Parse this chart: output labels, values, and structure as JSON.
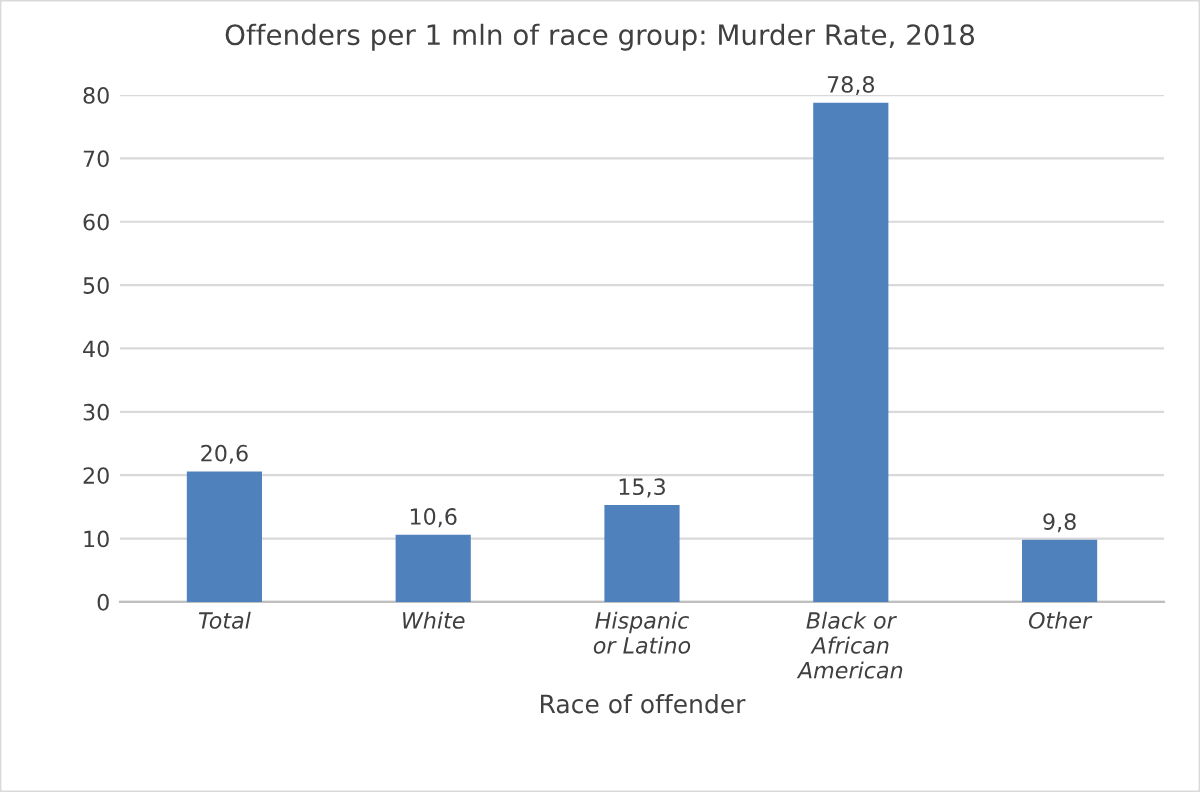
{
  "chart_data": {
    "type": "bar",
    "title": "Offenders per 1 mln of race group: Murder Rate, 2018",
    "xlabel": "Race of offender",
    "categories": [
      "Total",
      "White",
      "Hispanic or Latino",
      "Black or African American",
      "Other"
    ],
    "values": [
      20.6,
      10.6,
      15.3,
      78.8,
      9.8
    ],
    "value_labels": [
      "20,6",
      "10,6",
      "15,3",
      "78,8",
      "9,8"
    ],
    "color": "#4f81bd",
    "ylim": [
      0,
      80
    ],
    "yticks": [
      0,
      10,
      20,
      30,
      40,
      50,
      60,
      70,
      80
    ],
    "grid": "y",
    "legend": false
  }
}
